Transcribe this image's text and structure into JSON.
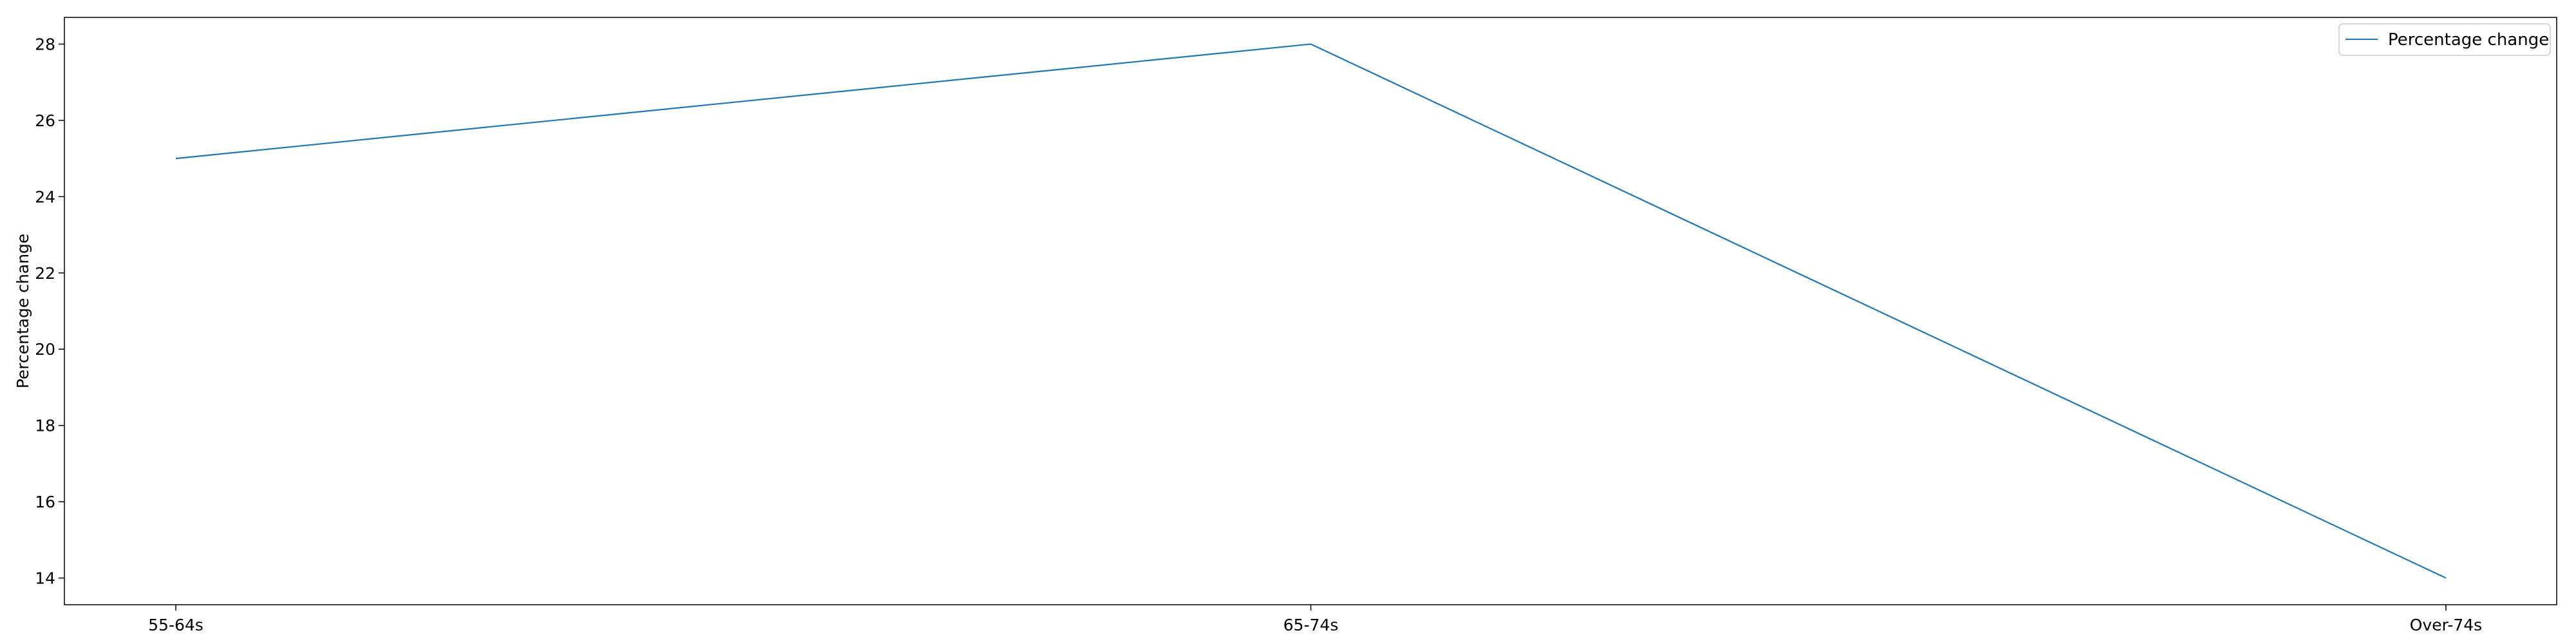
{
  "chart_data": {
    "type": "line",
    "categories": [
      "55-64s",
      "65-74s",
      "Over-74s"
    ],
    "series": [
      {
        "name": "Percentage change",
        "values": [
          25,
          28,
          14
        ],
        "color": "#1f77b4"
      }
    ],
    "xlabel": "",
    "ylabel": "Percentage change",
    "yticks": [
      14,
      16,
      18,
      20,
      22,
      24,
      26,
      28
    ],
    "ylim": [
      13.3,
      28.7
    ],
    "grid": false,
    "legend": "top-right"
  }
}
